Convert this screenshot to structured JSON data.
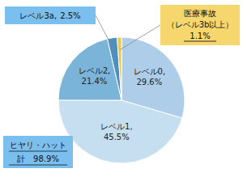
{
  "chart_data": {
    "type": "pie",
    "categories": [
      "レベル0,",
      "レベル1,",
      "レベル2,",
      "レベル3a,",
      "医療事故"
    ],
    "values": [
      29.6,
      45.5,
      21.4,
      2.5,
      1.1
    ],
    "value_labels": [
      "29.6%",
      "45.5%",
      "21.4%",
      "2.5%",
      "1.1%"
    ],
    "colors": [
      "#aecde8",
      "#c5dff0",
      "#7ab4d8",
      "#4d8fbf",
      "#e8c84a"
    ],
    "annotations": [
      "（レベル3b以上）",
      "ヒヤリ・ハット",
      "計　98.9%"
    ]
  }
}
